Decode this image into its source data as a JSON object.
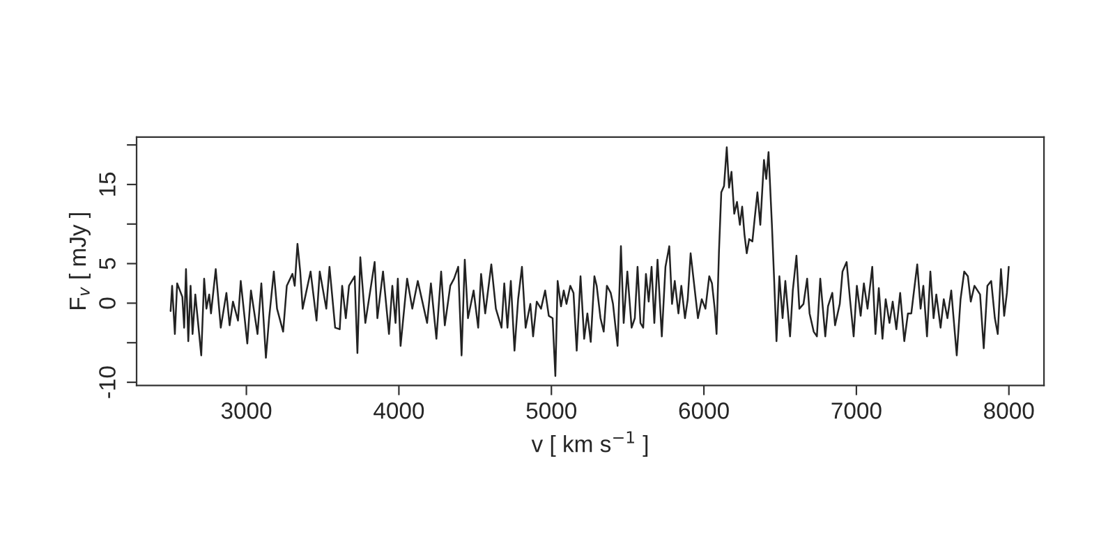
{
  "chart_data": {
    "type": "line",
    "xlabel": "v [ km s$^{−1}$ ]",
    "ylabel": "F$_{v}$ [ mJy ]",
    "xlim": [
      2280,
      8230
    ],
    "ylim": [
      -10.4,
      21.0
    ],
    "xticks": [
      3000,
      4000,
      5000,
      6000,
      7000,
      8000
    ],
    "yticks": [
      -10,
      {
        "value": -5,
        "label": null
      },
      0,
      5,
      {
        "value": 10,
        "label": null
      },
      15,
      {
        "value": 20,
        "label": null
      }
    ],
    "grid": false,
    "legend": false,
    "marker": "none",
    "line_style": "solid",
    "series": [
      {
        "color": "#222222",
        "x": [
          2503,
          2513,
          2531,
          2546,
          2580,
          2592,
          2604,
          2619,
          2634,
          2647,
          2665,
          2704,
          2723,
          2738,
          2756,
          2768,
          2799,
          2832,
          2869,
          2890,
          2912,
          2945,
          2963,
          3006,
          3030,
          3073,
          3098,
          3128,
          3149,
          3180,
          3201,
          3241,
          3265,
          3302,
          3317,
          3335,
          3353,
          3369,
          3421,
          3460,
          3481,
          3524,
          3545,
          3582,
          3612,
          3628,
          3652,
          3673,
          3710,
          3728,
          3747,
          3780,
          3841,
          3859,
          3896,
          3935,
          3957,
          3978,
          3993,
          4011,
          4054,
          4088,
          4124,
          4185,
          4210,
          4246,
          4277,
          4301,
          4337,
          4362,
          4389,
          4411,
          4432,
          4453,
          4490,
          4520,
          4539,
          4566,
          4606,
          4636,
          4673,
          4691,
          4712,
          4734,
          4758,
          4782,
          4807,
          4831,
          4862,
          4880,
          4904,
          4932,
          4959,
          4983,
          5008,
          5026,
          5041,
          5063,
          5081,
          5099,
          5124,
          5145,
          5166,
          5191,
          5215,
          5236,
          5258,
          5282,
          5297,
          5322,
          5343,
          5364,
          5389,
          5404,
          5434,
          5456,
          5474,
          5498,
          5526,
          5547,
          5565,
          5584,
          5602,
          5620,
          5638,
          5657,
          5675,
          5696,
          5724,
          5748,
          5773,
          5791,
          5809,
          5833,
          5852,
          5876,
          5894,
          5913,
          5937,
          5961,
          5986,
          6010,
          6035,
          6053,
          6071,
          6083,
          6099,
          6114,
          6132,
          6150,
          6165,
          6181,
          6199,
          6217,
          6236,
          6251,
          6266,
          6281,
          6297,
          6318,
          6333,
          6351,
          6370,
          6394,
          6409,
          6424,
          6446,
          6461,
          6476,
          6495,
          6516,
          6534,
          6565,
          6583,
          6607,
          6626,
          6653,
          6677,
          6693,
          6720,
          6741,
          6763,
          6796,
          6814,
          6842,
          6860,
          6891,
          6909,
          6936,
          6958,
          6982,
          7003,
          7028,
          7049,
          7073,
          7104,
          7125,
          7147,
          7171,
          7192,
          7217,
          7238,
          7262,
          7287,
          7314,
          7338,
          7360,
          7378,
          7399,
          7421,
          7439,
          7463,
          7485,
          7506,
          7524,
          7552,
          7573,
          7597,
          7622,
          7658,
          7683,
          7707,
          7731,
          7750,
          7774,
          7811,
          7835,
          7859,
          7884,
          7908,
          7927,
          7948,
          7969,
          7987,
          7999
        ],
        "values": [
          -1.0,
          2.2,
          -3.9,
          2.5,
          0.8,
          -3.1,
          4.3,
          -4.8,
          2.2,
          -3.9,
          1.1,
          -6.6,
          3.1,
          -0.7,
          1.1,
          -1.3,
          4.3,
          -3.1,
          1.3,
          -2.8,
          0.2,
          -2.2,
          2.8,
          -5.1,
          1.6,
          -3.9,
          2.5,
          -6.9,
          -1.9,
          4.0,
          -0.7,
          -3.6,
          2.2,
          3.7,
          2.2,
          7.5,
          4.0,
          -0.7,
          4.0,
          -2.2,
          4.0,
          -0.7,
          4.6,
          -3.1,
          -3.3,
          2.2,
          -1.9,
          2.2,
          3.4,
          -6.3,
          5.8,
          -2.5,
          5.2,
          -1.9,
          4.0,
          -3.9,
          2.2,
          -2.5,
          3.1,
          -5.4,
          3.1,
          -0.7,
          2.8,
          -2.5,
          2.5,
          -4.5,
          4.0,
          -2.8,
          2.2,
          3.1,
          4.6,
          -6.6,
          5.5,
          -1.9,
          1.6,
          -3.1,
          3.7,
          -1.3,
          4.9,
          -0.7,
          -3.1,
          2.5,
          -3.1,
          2.8,
          -6.0,
          0.5,
          4.6,
          -3.1,
          -0.1,
          -4.2,
          0.2,
          -0.7,
          1.6,
          -1.6,
          -1.9,
          -9.2,
          2.8,
          -0.4,
          1.6,
          -0.1,
          2.2,
          1.3,
          -6.0,
          3.4,
          -4.5,
          -1.3,
          -4.9,
          3.4,
          2.2,
          -1.9,
          -3.6,
          2.2,
          1.3,
          -0.1,
          -5.4,
          7.2,
          -2.5,
          4.0,
          -3.1,
          -1.9,
          4.6,
          -2.5,
          -3.1,
          3.7,
          0.2,
          4.6,
          -2.5,
          5.5,
          -4.2,
          4.6,
          7.2,
          -0.1,
          2.8,
          -1.3,
          2.2,
          -1.9,
          0.5,
          6.3,
          2.2,
          -1.9,
          0.5,
          -0.7,
          3.4,
          2.5,
          -0.7,
          -3.9,
          6.6,
          14.0,
          14.8,
          19.7,
          14.6,
          16.6,
          11.3,
          12.8,
          9.9,
          12.2,
          8.7,
          6.3,
          8.1,
          7.8,
          10.7,
          14.0,
          9.9,
          18.1,
          15.7,
          19.1,
          9.9,
          2.8,
          -4.8,
          3.4,
          -1.9,
          2.8,
          -4.2,
          1.6,
          6.0,
          -0.7,
          -0.1,
          3.1,
          -1.3,
          -3.6,
          -4.2,
          3.1,
          -4.2,
          -0.4,
          1.3,
          -2.8,
          -0.1,
          4.0,
          5.2,
          0.5,
          -4.2,
          2.2,
          -1.6,
          2.5,
          -0.7,
          4.6,
          -3.9,
          1.9,
          -4.5,
          0.5,
          -2.5,
          0.2,
          -3.3,
          1.3,
          -4.8,
          -1.3,
          -1.3,
          1.6,
          4.9,
          -0.7,
          2.2,
          -4.2,
          4.0,
          -1.9,
          1.1,
          -3.1,
          0.5,
          -1.9,
          1.6,
          -6.6,
          0.5,
          4.0,
          3.4,
          0.2,
          2.2,
          1.1,
          -5.7,
          2.2,
          2.8,
          -1.9,
          -3.9,
          4.3,
          -1.6,
          1.3,
          4.6
        ]
      }
    ]
  }
}
